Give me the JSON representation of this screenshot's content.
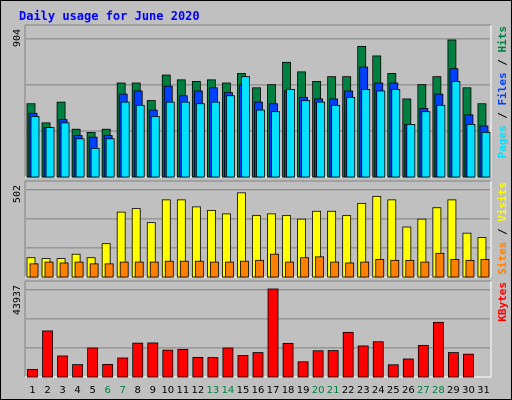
{
  "title": "Daily usage for June 2020",
  "colors": {
    "title": "#0000ff",
    "hits": "#008040",
    "files": "#0040ff",
    "pages": "#00e0ff",
    "visits": "#ffff00",
    "sites": "#ff8000",
    "kbytes": "#ff0000",
    "weekend_label": "#008040",
    "plot_bg": "#c0c0c0"
  },
  "chart_data": [
    {
      "type": "bar",
      "panel": "top",
      "y_label_max": "904",
      "ylim": [
        0,
        904
      ],
      "grid": true,
      "legend": [
        "Pages",
        "Files",
        "Hits"
      ],
      "series": [
        {
          "name": "Hits",
          "values": [
            460,
            340,
            470,
            300,
            280,
            300,
            590,
            590,
            480,
            640,
            610,
            600,
            610,
            590,
            650,
            560,
            580,
            720,
            660,
            600,
            630,
            630,
            820,
            760,
            650,
            490,
            580,
            630,
            860,
            560,
            460
          ]
        },
        {
          "name": "Files",
          "values": [
            400,
            310,
            360,
            260,
            250,
            260,
            520,
            540,
            420,
            570,
            510,
            540,
            560,
            530,
            580,
            470,
            460,
            540,
            500,
            490,
            490,
            540,
            690,
            590,
            590,
            330,
            430,
            520,
            680,
            390,
            320
          ]
        },
        {
          "name": "Pages",
          "values": [
            380,
            310,
            340,
            240,
            180,
            240,
            470,
            450,
            380,
            470,
            470,
            460,
            470,
            510,
            630,
            420,
            410,
            550,
            480,
            470,
            450,
            500,
            550,
            540,
            550,
            330,
            410,
            450,
            600,
            330,
            280
          ]
        }
      ],
      "categories": [
        "1",
        "2",
        "3",
        "4",
        "5",
        "6",
        "7",
        "8",
        "9",
        "10",
        "11",
        "12",
        "13",
        "14",
        "15",
        "16",
        "17",
        "18",
        "19",
        "20",
        "21",
        "22",
        "23",
        "24",
        "25",
        "26",
        "27",
        "28",
        "29",
        "30",
        "31"
      ]
    },
    {
      "type": "bar",
      "panel": "middle",
      "y_label_max": "502",
      "ylim": [
        0,
        502
      ],
      "grid": true,
      "legend": [
        "Sites",
        "Visits"
      ],
      "series": [
        {
          "name": "Visits",
          "values": [
            110,
            105,
            105,
            130,
            110,
            190,
            370,
            390,
            310,
            440,
            440,
            400,
            380,
            360,
            480,
            350,
            360,
            350,
            330,
            375,
            375,
            350,
            420,
            460,
            440,
            285,
            330,
            395,
            440,
            250,
            225
          ]
        },
        {
          "name": "Sites",
          "values": [
            75,
            85,
            80,
            85,
            75,
            75,
            85,
            85,
            85,
            90,
            90,
            90,
            85,
            85,
            90,
            95,
            130,
            85,
            110,
            115,
            85,
            80,
            85,
            100,
            95,
            95,
            85,
            135,
            100,
            95,
            100
          ]
        }
      ],
      "categories": [
        "1",
        "2",
        "3",
        "4",
        "5",
        "6",
        "7",
        "8",
        "9",
        "10",
        "11",
        "12",
        "13",
        "14",
        "15",
        "16",
        "17",
        "18",
        "19",
        "20",
        "21",
        "22",
        "23",
        "24",
        "25",
        "26",
        "27",
        "28",
        "29",
        "30",
        "31"
      ]
    },
    {
      "type": "bar",
      "panel": "bottom",
      "y_label_max": "43937",
      "ylim": [
        0,
        43937
      ],
      "grid": true,
      "legend": [
        "KBytes"
      ],
      "series": [
        {
          "name": "KBytes",
          "values": [
            3800,
            23000,
            10500,
            6200,
            14500,
            6300,
            9500,
            16900,
            17000,
            13400,
            13800,
            9800,
            9700,
            14500,
            10700,
            12200,
            43937,
            16800,
            7600,
            13100,
            13200,
            22300,
            15500,
            17600,
            6100,
            9000,
            15800,
            27300,
            12200,
            11400,
            0
          ]
        }
      ],
      "categories": [
        "1",
        "2",
        "3",
        "4",
        "5",
        "6",
        "7",
        "8",
        "9",
        "10",
        "11",
        "12",
        "13",
        "14",
        "15",
        "16",
        "17",
        "18",
        "19",
        "20",
        "21",
        "22",
        "23",
        "24",
        "25",
        "26",
        "27",
        "28",
        "29",
        "30",
        "31"
      ],
      "weekend_days": [
        "6",
        "7",
        "13",
        "14",
        "20",
        "21",
        "27",
        "28"
      ]
    }
  ]
}
